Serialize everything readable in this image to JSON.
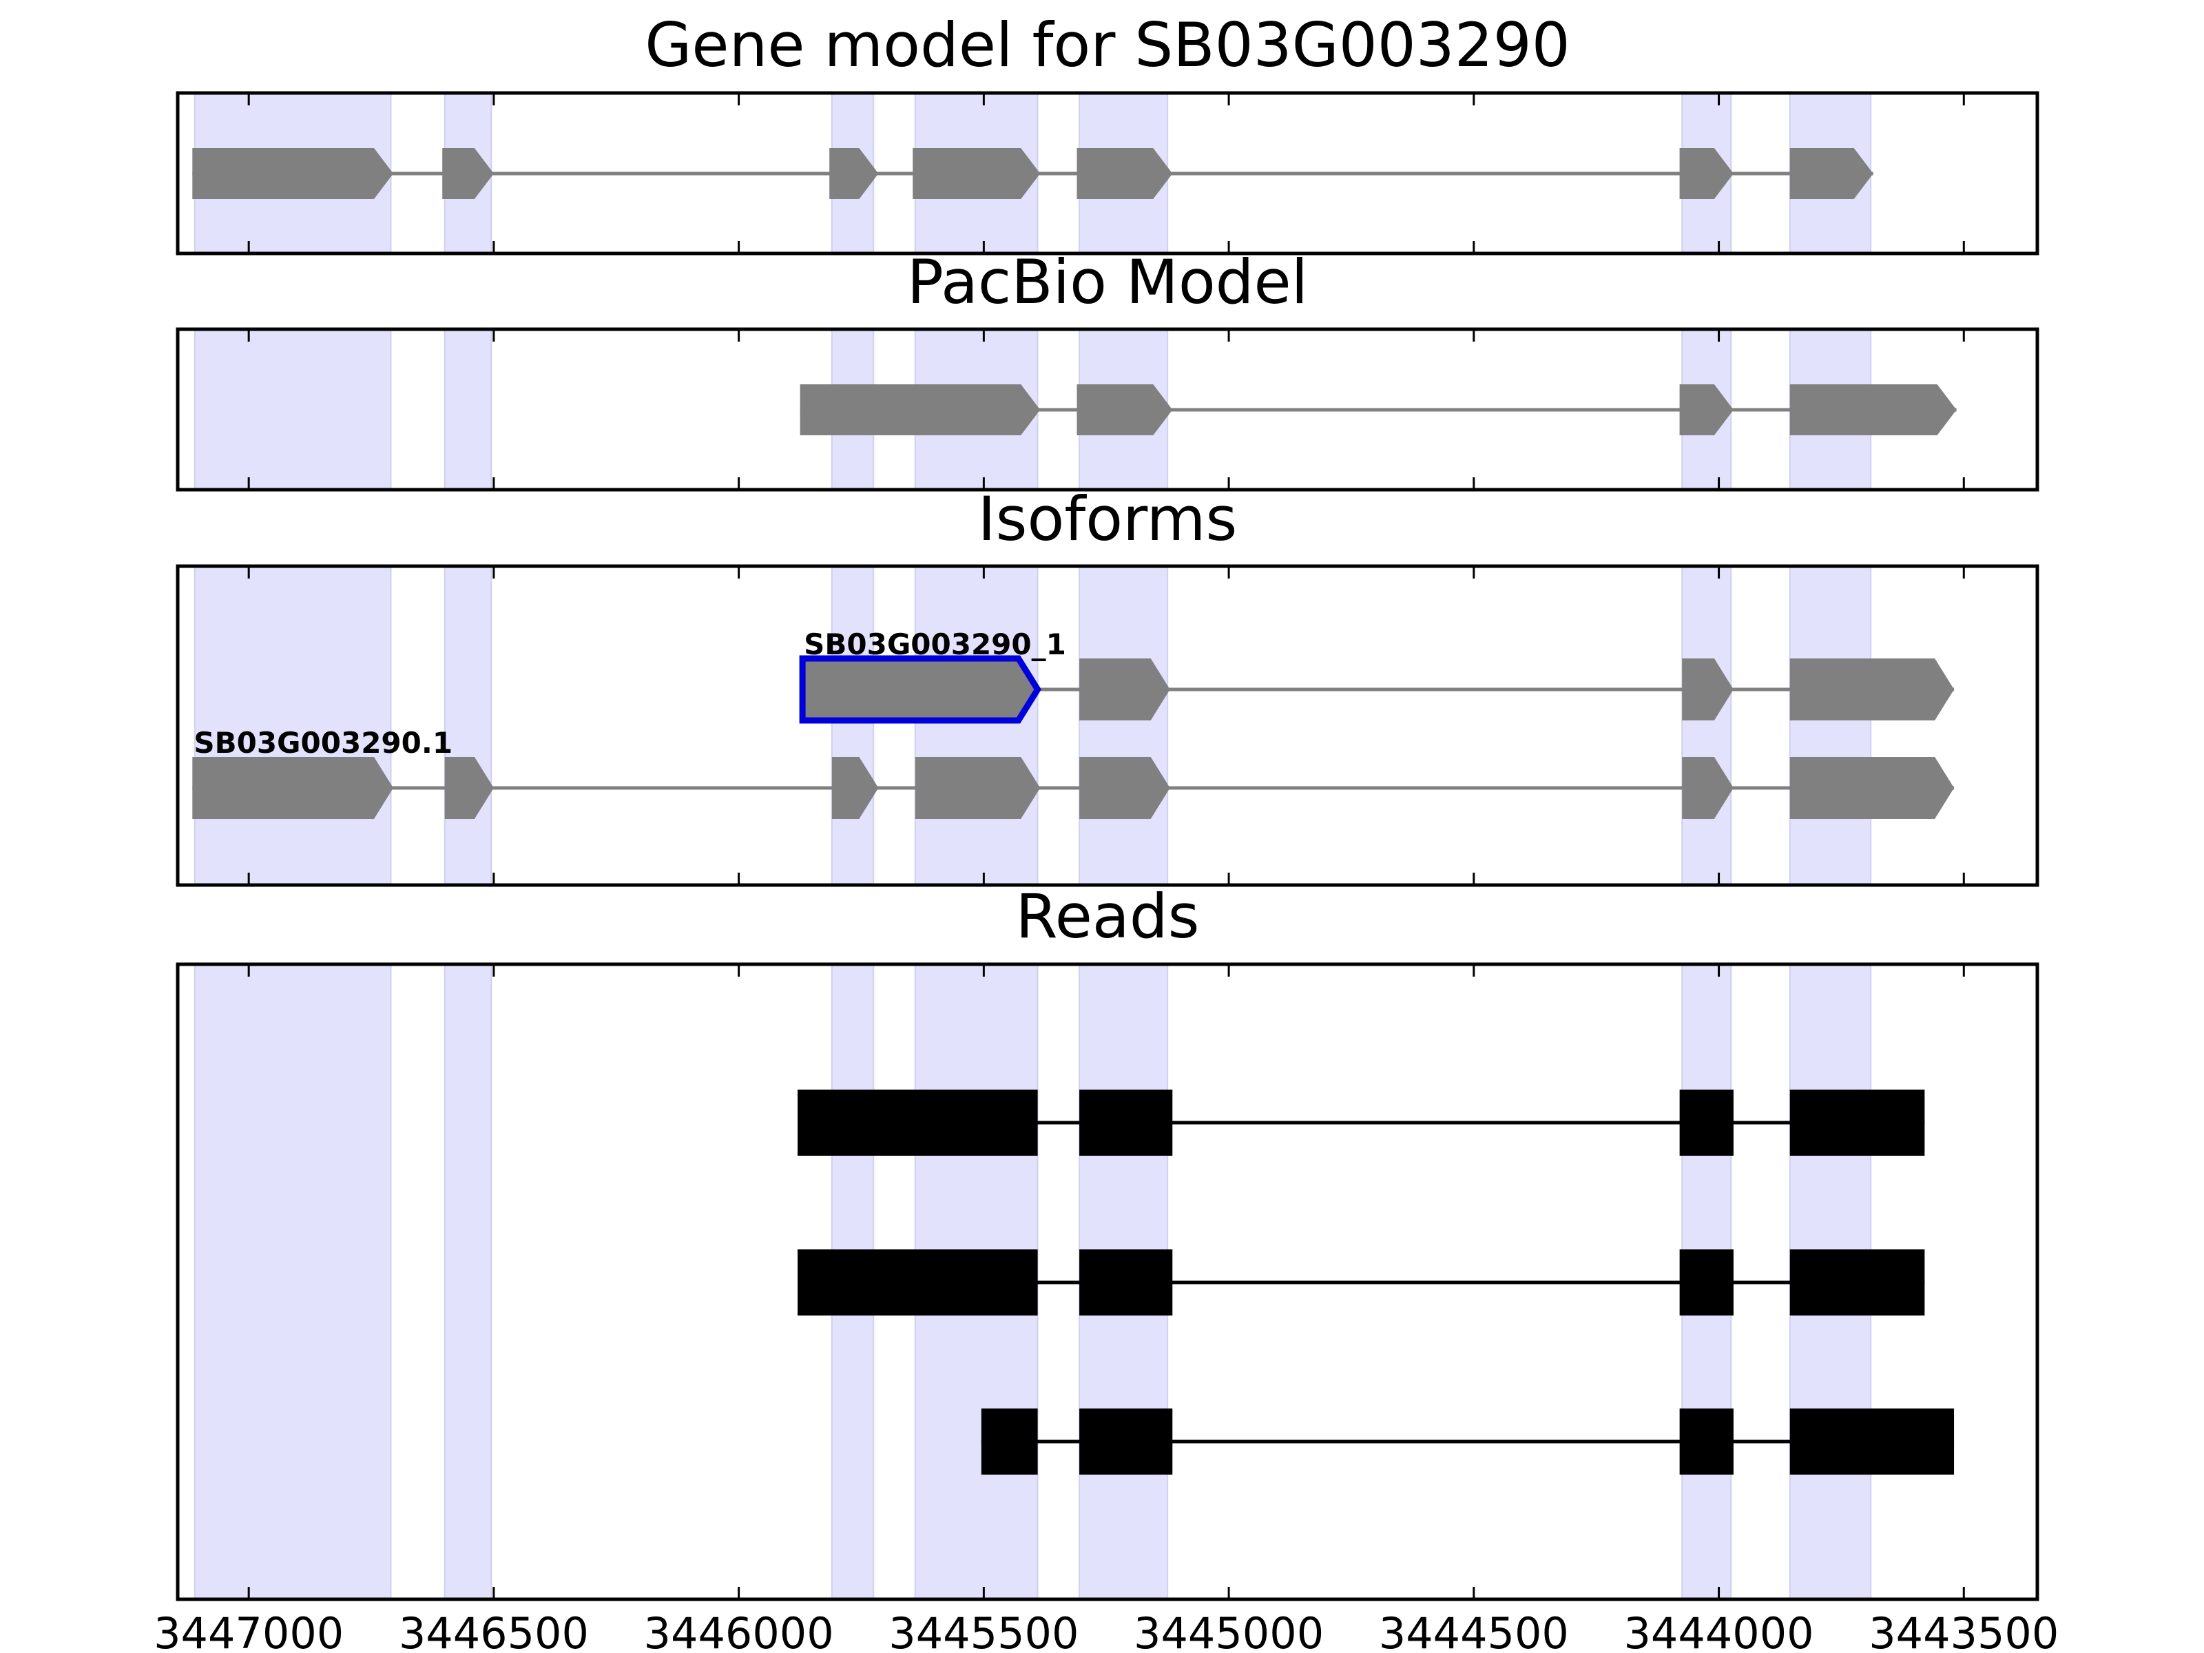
{
  "chart_data": {
    "type": "gene-structure",
    "x_axis": {
      "direction": "reversed",
      "xlim": [
        3447145,
        3443350
      ],
      "ticks": [
        3447000,
        3446500,
        3446000,
        3445500,
        3445000,
        3444500,
        3444000,
        3443500
      ],
      "tick_labels": [
        "3447000",
        "3446500",
        "3446000",
        "3445500",
        "3445000",
        "3444500",
        "3444000",
        "3443500"
      ]
    },
    "highlight_color": "#e2e2fc",
    "highlight_regions": [
      [
        3447110,
        3446710
      ],
      [
        3446600,
        3446505
      ],
      [
        3445810,
        3445725
      ],
      [
        3445640,
        3445390
      ],
      [
        3445305,
        3445125
      ],
      [
        3444075,
        3443975
      ],
      [
        3443855,
        3443690
      ]
    ],
    "panels": [
      {
        "key": "gene",
        "title": "Gene model for SB03G003290",
        "style": "arrow",
        "fill": "#808080",
        "tracks": [
          {
            "label": "",
            "exons": [
              [
                3447115,
                3446705
              ],
              [
                3446605,
                3446500
              ],
              [
                3445815,
                3445715
              ],
              [
                3445645,
                3445385
              ],
              [
                3445310,
                3445115
              ],
              [
                3444080,
                3443970
              ],
              [
                3443855,
                3443685
              ]
            ]
          }
        ]
      },
      {
        "key": "pacbio",
        "title": "PacBio Model",
        "style": "arrow",
        "fill": "#808080",
        "tracks": [
          {
            "label": "",
            "exons": [
              [
                3445875,
                3445385
              ],
              [
                3445310,
                3445115
              ],
              [
                3444080,
                3443970
              ],
              [
                3443855,
                3443515
              ]
            ]
          }
        ]
      },
      {
        "key": "isoforms",
        "title": "Isoforms",
        "style": "arrow",
        "fill": "#808080",
        "tracks": [
          {
            "label": "SB03G003290_1",
            "highlight_first_exon": true,
            "highlight_color": "#0000dd",
            "exons": [
              [
                3445870,
                3445390
              ],
              [
                3445305,
                3445120
              ],
              [
                3444075,
                3443970
              ],
              [
                3443855,
                3443520
              ]
            ]
          },
          {
            "label": "SB03G003290.1",
            "exons": [
              [
                3447115,
                3446705
              ],
              [
                3446600,
                3446500
              ],
              [
                3445810,
                3445715
              ],
              [
                3445640,
                3445385
              ],
              [
                3445305,
                3445120
              ],
              [
                3444075,
                3443970
              ],
              [
                3443855,
                3443520
              ]
            ]
          }
        ]
      },
      {
        "key": "reads",
        "title": "Reads",
        "style": "block",
        "fill": "#000000",
        "tracks": [
          {
            "label": "",
            "exons": [
              [
                3445880,
                3445390
              ],
              [
                3445305,
                3445115
              ],
              [
                3444080,
                3443970
              ],
              [
                3443855,
                3443580
              ]
            ]
          },
          {
            "label": "",
            "exons": [
              [
                3445880,
                3445390
              ],
              [
                3445305,
                3445115
              ],
              [
                3444080,
                3443970
              ],
              [
                3443855,
                3443580
              ]
            ]
          },
          {
            "label": "",
            "exons": [
              [
                3445505,
                3445390
              ],
              [
                3445305,
                3445115
              ],
              [
                3444080,
                3443970
              ],
              [
                3443855,
                3443520
              ]
            ]
          }
        ]
      }
    ]
  }
}
